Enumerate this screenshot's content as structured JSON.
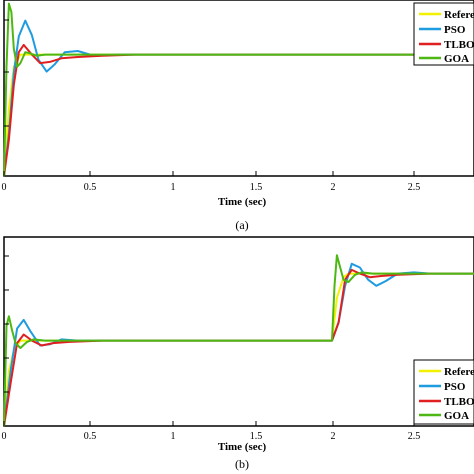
{
  "chart_data": [
    {
      "id": "a",
      "type": "line",
      "caption": "(a)",
      "xlabel": "Time (sec)",
      "xlim": [
        0,
        2.9
      ],
      "ylim": [
        0,
        1.45
      ],
      "xticks": [
        "0",
        "0.5",
        "1",
        "1.5",
        "2",
        "2.5"
      ],
      "xtick_values": [
        0,
        0.5,
        1,
        1.5,
        2,
        2.5
      ],
      "legend": {
        "position": "top-right",
        "entries": [
          "Refere",
          "PSO",
          "TLBO",
          "GOA"
        ]
      },
      "series": [
        {
          "name": "Refere",
          "color": "#f2f200",
          "x": [
            0,
            0.03,
            0.06,
            0.1,
            0.2,
            2.9
          ],
          "y": [
            0,
            0.55,
            0.9,
            1.0,
            1.0,
            1.0
          ]
        },
        {
          "name": "PSO",
          "color": "#1f9be0",
          "x": [
            0,
            0.03,
            0.06,
            0.09,
            0.13,
            0.17,
            0.21,
            0.26,
            0.31,
            0.37,
            0.45,
            0.55,
            0.7,
            2.9
          ],
          "y": [
            0,
            0.35,
            0.85,
            1.15,
            1.28,
            1.16,
            0.96,
            0.86,
            0.92,
            1.02,
            1.03,
            0.99,
            1.0,
            1.0
          ]
        },
        {
          "name": "TLBO",
          "color": "#e02020",
          "x": [
            0,
            0.03,
            0.06,
            0.09,
            0.12,
            0.17,
            0.22,
            0.28,
            0.35,
            0.45,
            0.6,
            0.8,
            2.9
          ],
          "y": [
            0,
            0.3,
            0.75,
            1.02,
            1.08,
            1.0,
            0.93,
            0.94,
            0.97,
            0.98,
            0.99,
            1.0,
            1.0
          ]
        },
        {
          "name": "GOA",
          "color": "#4db814",
          "x": [
            0,
            0.015,
            0.03,
            0.045,
            0.06,
            0.08,
            0.1,
            0.13,
            0.16,
            0.2,
            0.25,
            0.3,
            2.9
          ],
          "y": [
            0,
            0.9,
            1.42,
            1.35,
            1.05,
            0.9,
            0.93,
            1.02,
            1.01,
            0.99,
            1.0,
            1.0,
            1.0
          ]
        }
      ]
    },
    {
      "id": "b",
      "type": "line",
      "caption": "(b)",
      "xlabel": "Time (sec)",
      "xlim": [
        0,
        2.9
      ],
      "ylim": [
        0,
        1.55
      ],
      "xticks": [
        "0",
        "0.5",
        "1",
        "1.5",
        "2",
        "2.5"
      ],
      "xtick_values": [
        0,
        0.5,
        1,
        1.5,
        2,
        2.5
      ],
      "legend": {
        "position": "bottom-right",
        "entries": [
          "Refere",
          "PSO",
          "TLBO",
          "GOA"
        ]
      },
      "series": [
        {
          "name": "Refere",
          "color": "#f2f200",
          "x": [
            0,
            0.03,
            0.06,
            0.1,
            2.0,
            2.03,
            2.07,
            2.1,
            2.9
          ],
          "y": [
            0,
            0.45,
            0.62,
            0.7,
            0.7,
            1.05,
            1.22,
            1.25,
            1.25
          ]
        },
        {
          "name": "PSO",
          "color": "#1f9be0",
          "x": [
            0,
            0.04,
            0.08,
            0.12,
            0.16,
            0.22,
            0.28,
            0.35,
            0.45,
            0.6,
            2.0,
            2.04,
            2.08,
            2.12,
            2.17,
            2.22,
            2.27,
            2.33,
            2.4,
            2.5,
            2.6,
            2.9
          ],
          "y": [
            0,
            0.45,
            0.8,
            0.87,
            0.78,
            0.66,
            0.67,
            0.71,
            0.7,
            0.7,
            0.7,
            0.85,
            1.15,
            1.33,
            1.3,
            1.2,
            1.15,
            1.19,
            1.25,
            1.26,
            1.25,
            1.25
          ]
        },
        {
          "name": "TLBO",
          "color": "#e02020",
          "x": [
            0,
            0.04,
            0.08,
            0.12,
            0.17,
            0.23,
            0.3,
            0.4,
            0.6,
            2.0,
            2.04,
            2.08,
            2.12,
            2.17,
            2.23,
            2.3,
            2.4,
            2.6,
            2.9
          ],
          "y": [
            0,
            0.35,
            0.68,
            0.75,
            0.7,
            0.66,
            0.68,
            0.69,
            0.7,
            0.7,
            0.85,
            1.2,
            1.28,
            1.25,
            1.22,
            1.23,
            1.24,
            1.25,
            1.25
          ]
        },
        {
          "name": "GOA",
          "color": "#4db814",
          "x": [
            0,
            0.015,
            0.03,
            0.05,
            0.07,
            0.1,
            0.14,
            0.18,
            0.25,
            2.0,
            2.015,
            2.03,
            2.05,
            2.07,
            2.1,
            2.14,
            2.18,
            2.25,
            2.9
          ],
          "y": [
            0,
            0.82,
            0.9,
            0.78,
            0.68,
            0.64,
            0.69,
            0.71,
            0.7,
            0.7,
            1.15,
            1.4,
            1.3,
            1.2,
            1.18,
            1.24,
            1.26,
            1.25,
            1.25
          ]
        }
      ]
    }
  ]
}
